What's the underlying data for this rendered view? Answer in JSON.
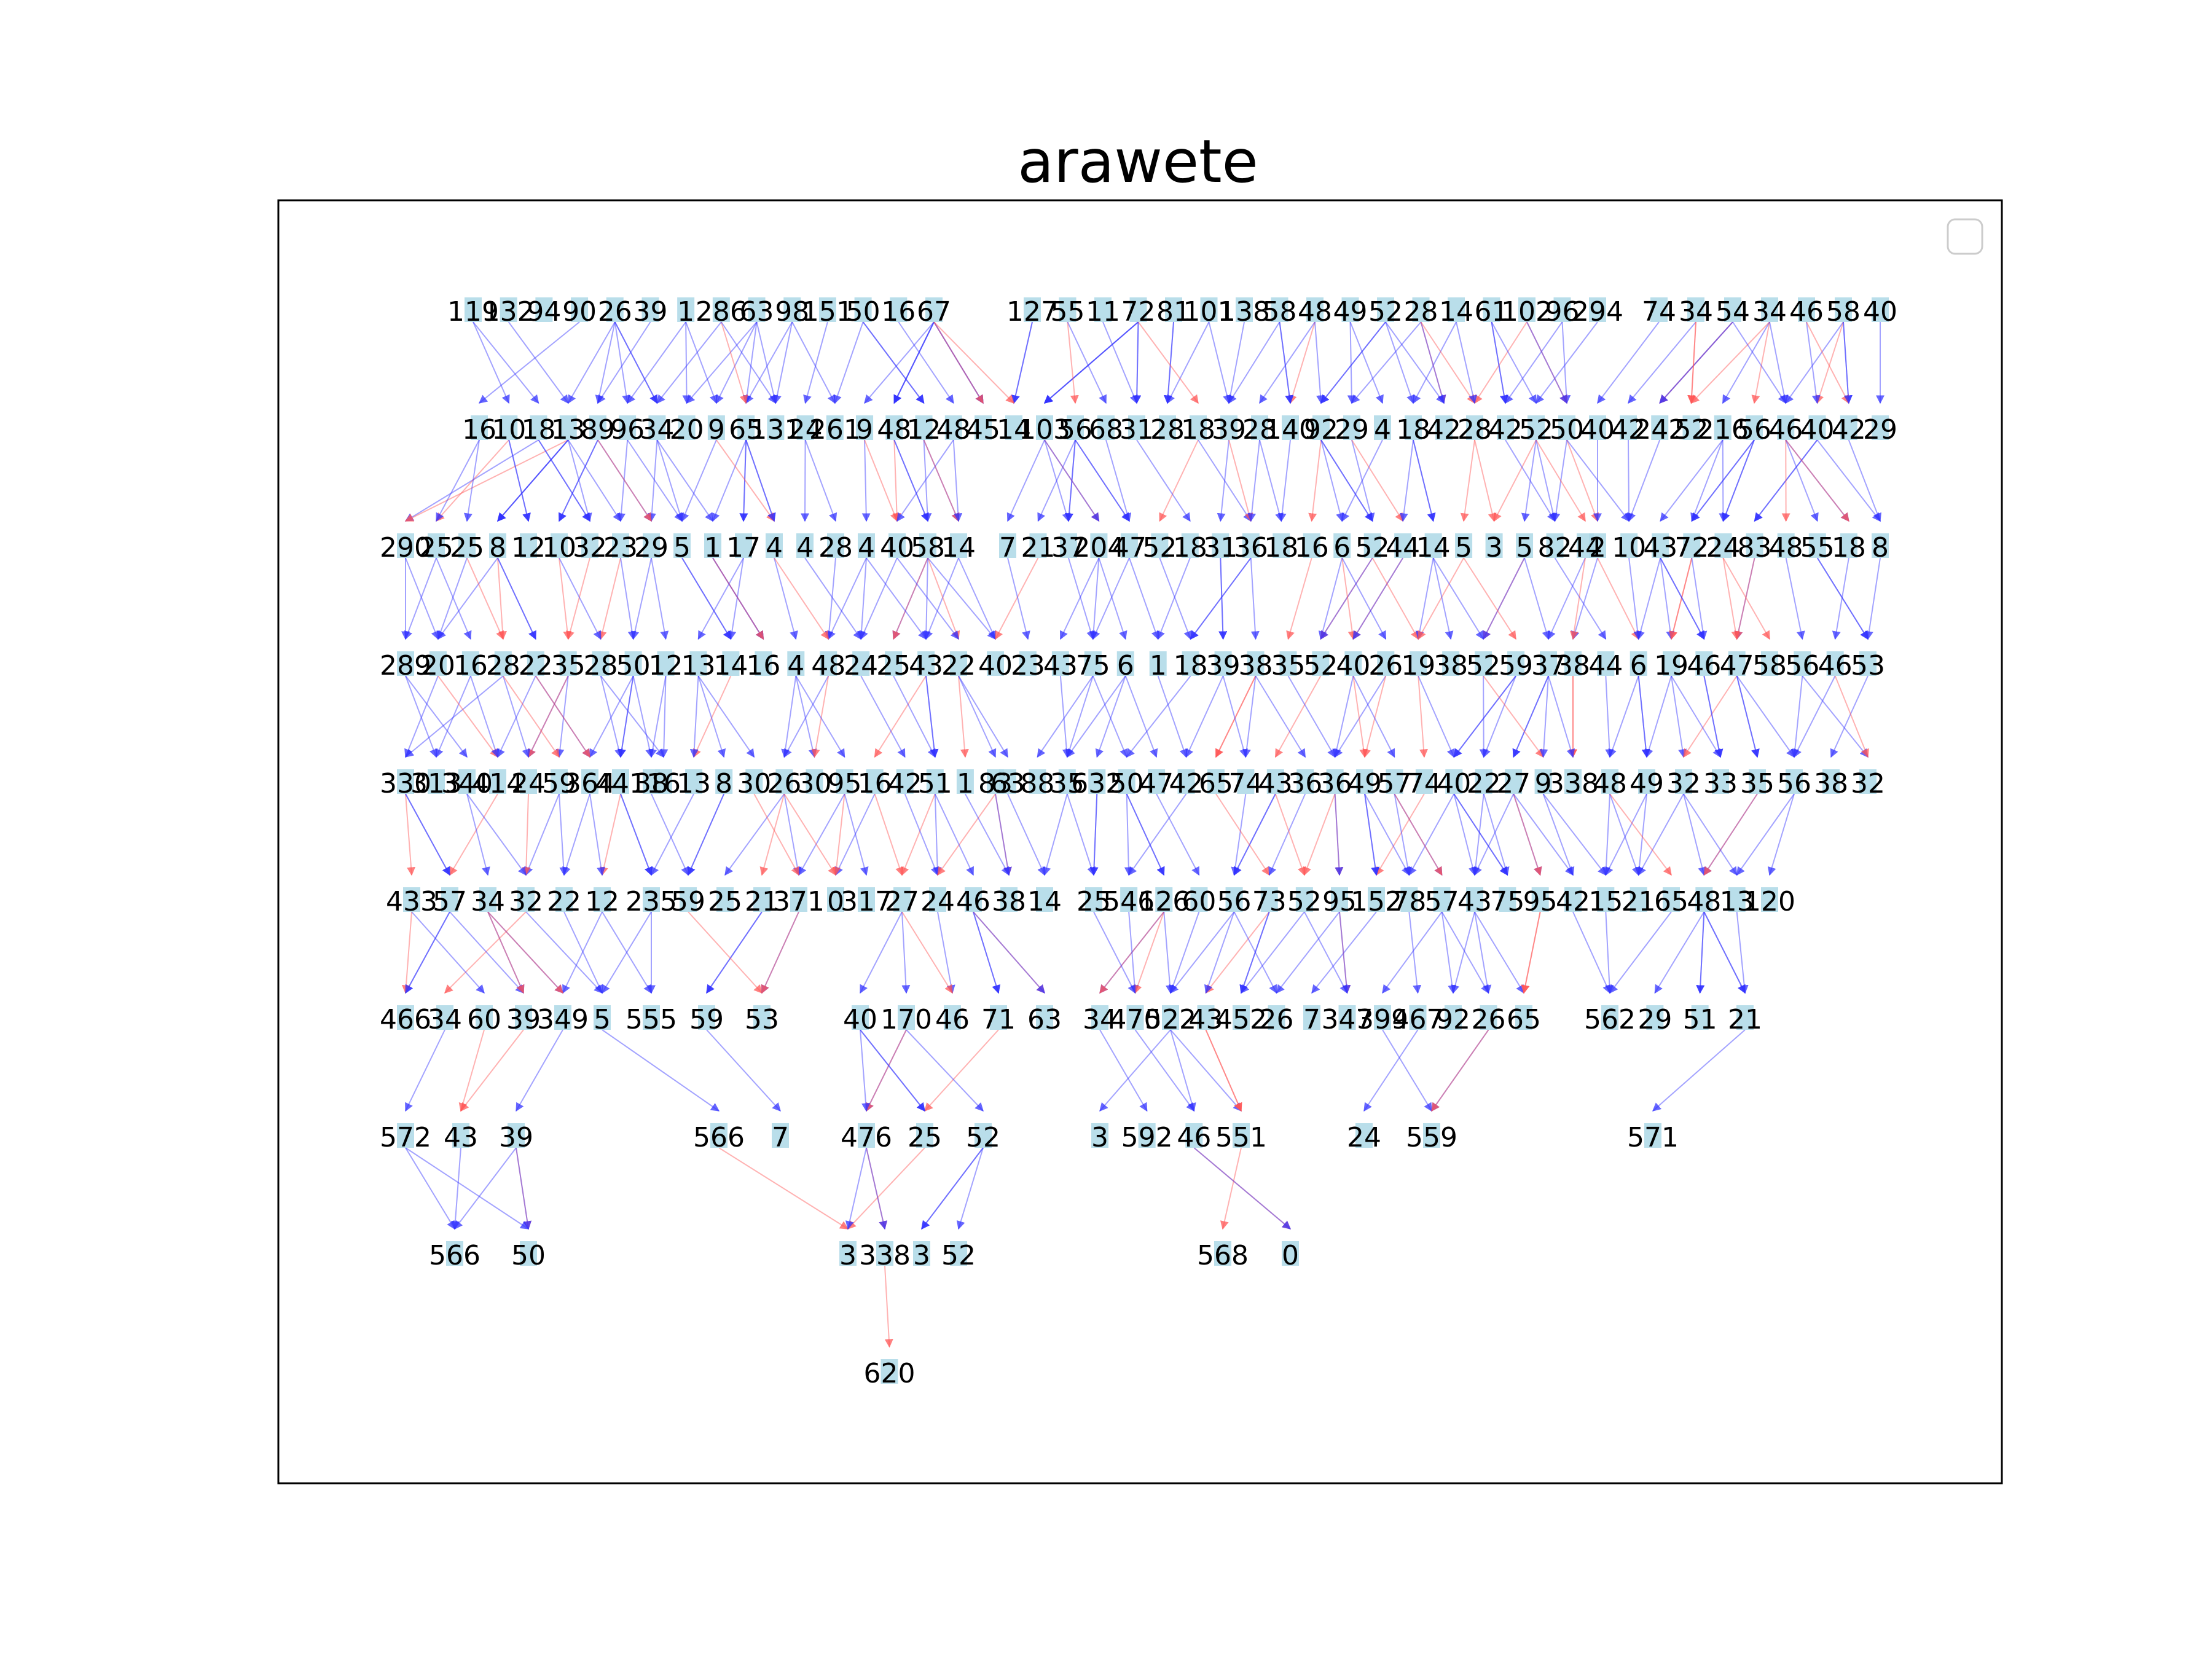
{
  "title": "arawete",
  "legend": {
    "entries": []
  },
  "colors": {
    "background": "#ffffff",
    "node_fill": "#add8e6",
    "edge_primary": "#3333ff",
    "edge_secondary": "#ff5555",
    "frame": "#000000"
  },
  "levels": [
    [
      "119",
      "132",
      "94",
      "90",
      "26",
      "39",
      "1",
      "286",
      "63",
      "98",
      "151",
      "50",
      "16",
      "67",
      "127",
      "55",
      "11",
      "72",
      "81",
      "101",
      "138",
      "58",
      "48",
      "49",
      "52",
      "28",
      "14",
      "61",
      "102",
      "96",
      "294",
      "74",
      "34",
      "54",
      "34",
      "46",
      "58",
      "40"
    ],
    [
      "16",
      "10",
      "18",
      "13",
      "89",
      "96",
      "34",
      "20",
      "9",
      "65",
      "131",
      "24",
      "261",
      "9",
      "48",
      "12",
      "48",
      "45",
      "14",
      "103",
      "56",
      "68",
      "31",
      "28",
      "18",
      "39",
      "28",
      "140",
      "92",
      "29",
      "4",
      "18",
      "42",
      "28",
      "42",
      "52",
      "50",
      "40",
      "42",
      "242",
      "52",
      "216",
      "56",
      "46",
      "40",
      "42",
      "29"
    ],
    [
      "290",
      "25",
      "25",
      "8",
      "12",
      "10",
      "32",
      "23",
      "29",
      "5",
      "1",
      "17",
      "4",
      "4",
      "28",
      "4",
      "40",
      "58",
      "14",
      "7",
      "21",
      "37",
      "204",
      "47",
      "52",
      "18",
      "31",
      "36",
      "18",
      "16",
      "6",
      "52",
      "44",
      "14",
      "5",
      "3",
      "5",
      "82",
      "44",
      "2",
      "10",
      "43",
      "72",
      "24",
      "83",
      "48",
      "55",
      "18",
      "8"
    ],
    [
      "289",
      "20",
      "16",
      "28",
      "22",
      "35",
      "28",
      "50",
      "12",
      "13",
      "14",
      "16",
      "4",
      "48",
      "24",
      "25",
      "43",
      "22",
      "40",
      "23",
      "43",
      "75",
      "6",
      "1",
      "18",
      "39",
      "38",
      "35",
      "52",
      "40",
      "26",
      "19",
      "38",
      "52",
      "59",
      "37",
      "38",
      "44",
      "6",
      "19",
      "46",
      "47",
      "58",
      "56",
      "46",
      "53"
    ],
    [
      "330",
      "313",
      "340",
      "414",
      "24",
      "59",
      "364",
      "441",
      "38",
      "16",
      "13",
      "8",
      "30",
      "26",
      "30",
      "95",
      "16",
      "42",
      "51",
      "1",
      "83",
      "63",
      "88",
      "35",
      "632",
      "50",
      "47",
      "42",
      "65",
      "74",
      "43",
      "36",
      "36",
      "49",
      "57",
      "74",
      "40",
      "22",
      "27",
      "9",
      "338",
      "48",
      "49",
      "32",
      "33",
      "35",
      "56",
      "38",
      "32"
    ],
    [
      "433",
      "57",
      "34",
      "32",
      "22",
      "12",
      "235",
      "59",
      "25",
      "21",
      "371",
      "0",
      "317",
      "27",
      "24",
      "46",
      "38",
      "14",
      "25",
      "546",
      "126",
      "60",
      "56",
      "73",
      "52",
      "95",
      "152",
      "78",
      "57",
      "43",
      "75",
      "95",
      "42",
      "15",
      "21",
      "65",
      "48",
      "13",
      "120"
    ],
    [
      "466",
      "34",
      "60",
      "39",
      "349",
      "5",
      "555",
      "59",
      "53",
      "40",
      "170",
      "46",
      "71",
      "63",
      "34",
      "470",
      "522",
      "43",
      "452",
      "26",
      "7",
      "347",
      "399",
      "467",
      "92",
      "26",
      "65",
      "562",
      "29",
      "51",
      "21"
    ],
    [
      "572",
      "43",
      "39",
      "566",
      "7",
      "476",
      "25",
      "52",
      "3",
      "592",
      "46",
      "551",
      "24",
      "559",
      "571"
    ],
    [
      "566",
      "50",
      "3",
      "338",
      "3",
      "52",
      "568",
      "0"
    ],
    [
      "620"
    ]
  ]
}
